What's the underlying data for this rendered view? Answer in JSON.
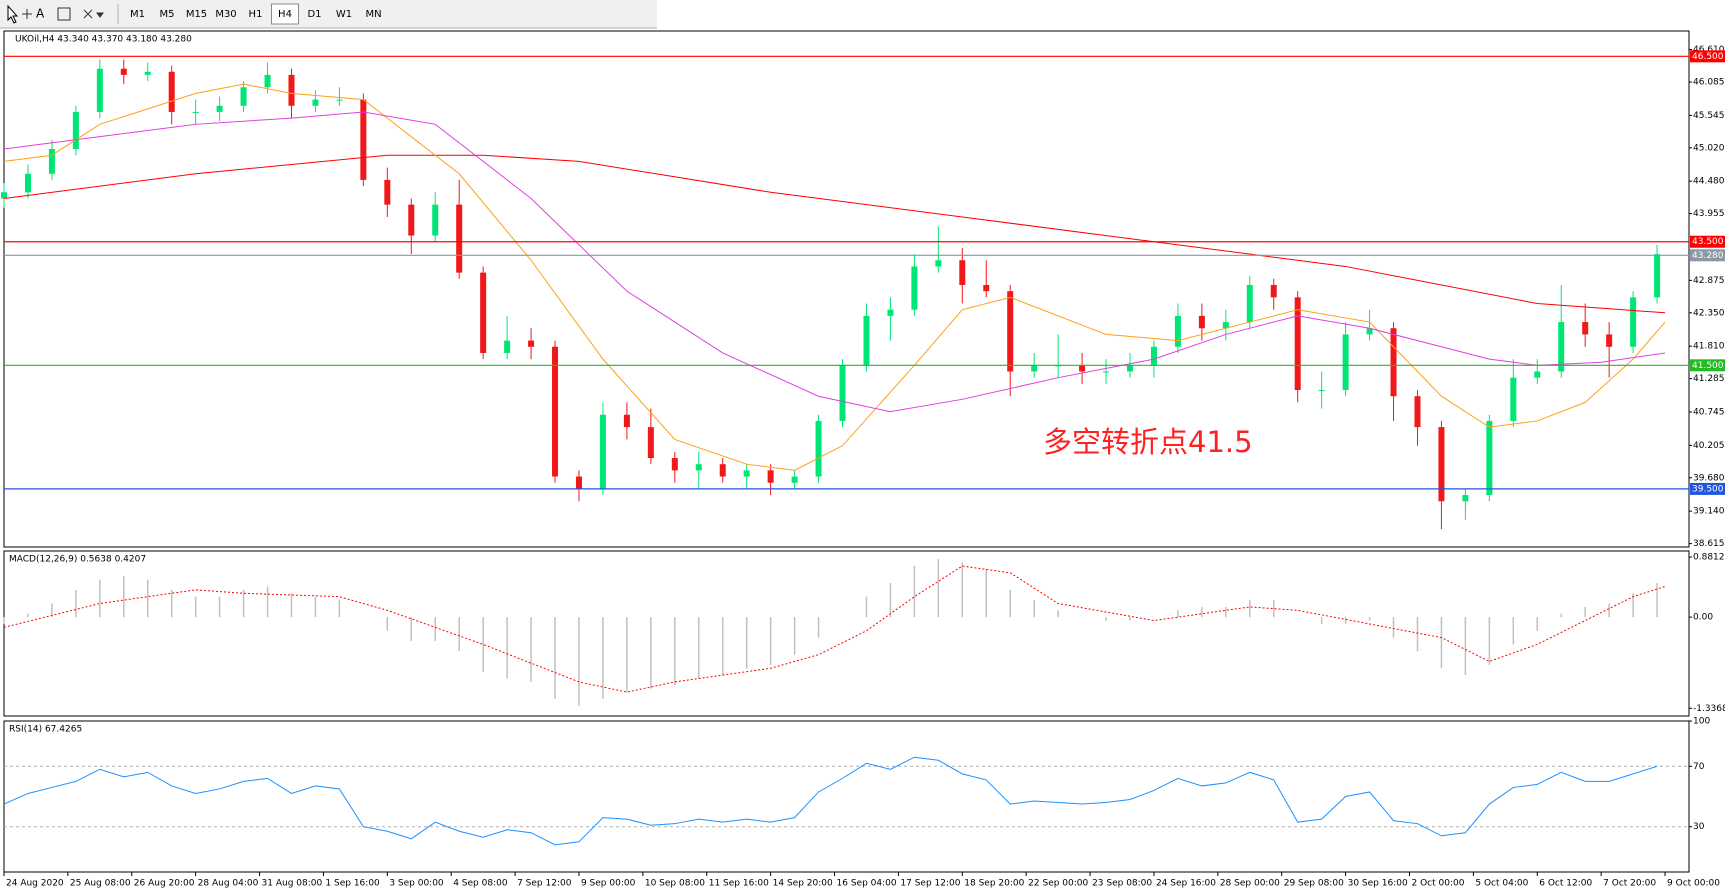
{
  "toolbar": {
    "text_tool": "A",
    "timeframes": [
      "M1",
      "M5",
      "M15",
      "M30",
      "H1",
      "H4",
      "D1",
      "W1",
      "MN"
    ],
    "active_timeframe": "H4"
  },
  "chart_data": [
    {
      "type": "candlestick",
      "title": "UKOil,H4 43.340 43.370 43.180 43.280",
      "x": [
        0,
        3,
        6,
        9,
        12,
        15,
        18,
        21,
        24,
        27,
        30,
        33,
        36,
        39,
        42,
        45,
        48,
        51,
        54,
        57,
        60,
        63,
        66,
        69,
        72,
        75,
        78,
        81,
        84,
        87,
        90,
        93,
        96,
        99,
        102,
        105,
        108,
        111,
        114,
        117,
        120,
        123,
        126,
        129,
        132,
        135,
        138,
        141,
        144,
        147,
        150,
        153,
        156,
        159,
        162,
        165,
        168,
        171,
        174,
        177,
        180,
        183,
        186,
        189,
        192,
        195,
        198,
        201,
        204,
        207
      ],
      "open": [
        44.2,
        44.3,
        44.6,
        45.0,
        45.6,
        46.3,
        46.2,
        46.25,
        45.6,
        45.6,
        45.7,
        46.0,
        46.2,
        45.7,
        45.8,
        45.8,
        44.5,
        44.1,
        43.6,
        44.1,
        43.0,
        41.7,
        41.9,
        41.8,
        39.7,
        39.5,
        40.7,
        40.5,
        40.0,
        39.8,
        39.9,
        39.7,
        39.8,
        39.6,
        39.7,
        40.6,
        41.5,
        42.3,
        42.4,
        43.1,
        43.2,
        42.8,
        42.7,
        41.4,
        41.5,
        41.5,
        41.4,
        41.4,
        41.5,
        41.8,
        42.3,
        42.1,
        42.2,
        42.8,
        42.6,
        41.1,
        41.1,
        42.0,
        42.1,
        41.0,
        40.5,
        39.3,
        39.4,
        40.6,
        41.3,
        41.4,
        42.2,
        42.0,
        41.8,
        42.6
      ],
      "high": [
        44.45,
        44.75,
        45.15,
        45.7,
        46.45,
        46.45,
        46.4,
        46.35,
        45.8,
        45.85,
        46.1,
        46.4,
        46.3,
        45.95,
        46.0,
        45.9,
        44.7,
        44.2,
        44.3,
        44.5,
        43.1,
        42.3,
        42.1,
        41.9,
        39.8,
        40.9,
        40.9,
        40.8,
        40.1,
        40.1,
        40.0,
        39.9,
        39.9,
        39.8,
        40.7,
        41.6,
        42.5,
        42.6,
        43.3,
        43.75,
        43.4,
        43.2,
        42.8,
        41.7,
        42.0,
        41.7,
        41.6,
        41.7,
        41.9,
        42.5,
        42.5,
        42.4,
        42.95,
        42.9,
        42.7,
        41.4,
        42.2,
        42.4,
        42.2,
        41.1,
        40.6,
        39.5,
        40.7,
        41.6,
        41.6,
        42.8,
        42.5,
        42.2,
        42.7,
        43.45
      ],
      "low": [
        44.05,
        44.2,
        44.5,
        44.9,
        45.5,
        46.05,
        46.1,
        45.4,
        45.4,
        45.45,
        45.6,
        45.9,
        45.5,
        45.6,
        45.7,
        44.4,
        43.9,
        43.3,
        43.5,
        42.9,
        41.6,
        41.6,
        41.6,
        39.6,
        39.3,
        39.4,
        40.3,
        39.9,
        39.6,
        39.5,
        39.6,
        39.5,
        39.4,
        39.5,
        39.6,
        40.5,
        41.4,
        41.9,
        42.3,
        43.0,
        42.5,
        42.6,
        41.0,
        41.3,
        41.3,
        41.2,
        41.2,
        41.3,
        41.3,
        41.7,
        41.9,
        41.9,
        42.1,
        42.4,
        40.9,
        40.8,
        41.0,
        41.9,
        40.6,
        40.2,
        38.85,
        39.0,
        39.3,
        40.5,
        41.2,
        41.3,
        41.8,
        41.3,
        41.7,
        42.5
      ],
      "close": [
        44.3,
        44.6,
        45.0,
        45.6,
        46.3,
        46.2,
        46.25,
        45.6,
        45.6,
        45.7,
        46.0,
        46.2,
        45.7,
        45.8,
        45.8,
        44.5,
        44.1,
        43.6,
        44.1,
        43.0,
        41.7,
        41.9,
        41.8,
        39.7,
        39.5,
        40.7,
        40.5,
        40.0,
        39.8,
        39.9,
        39.7,
        39.8,
        39.6,
        39.7,
        40.6,
        41.5,
        42.3,
        42.4,
        43.1,
        43.2,
        42.8,
        42.7,
        41.4,
        41.5,
        41.5,
        41.4,
        41.4,
        41.5,
        41.8,
        42.3,
        42.1,
        42.2,
        42.8,
        42.6,
        41.1,
        41.1,
        42.0,
        42.1,
        41.0,
        40.5,
        39.3,
        39.4,
        40.6,
        41.3,
        41.4,
        42.2,
        42.0,
        41.8,
        42.6,
        43.3
      ],
      "up_color": "#00e676",
      "down_color": "#f01818",
      "series": [
        {
          "type": "line",
          "color": "#ff0000",
          "x": [
            0,
            24,
            48,
            60,
            72,
            96,
            120,
            144,
            168,
            192,
            208
          ],
          "values": [
            44.2,
            44.6,
            44.9,
            44.9,
            44.8,
            44.3,
            43.9,
            43.5,
            43.1,
            42.5,
            42.35
          ]
        },
        {
          "type": "line",
          "color": "#ff9f1a",
          "x": [
            0,
            6,
            12,
            24,
            30,
            36,
            45,
            51,
            57,
            66,
            75,
            84,
            93,
            99,
            105,
            114,
            120,
            126,
            138,
            147,
            156,
            162,
            171,
            180,
            186,
            192,
            198,
            204,
            208
          ],
          "values": [
            44.8,
            44.9,
            45.4,
            45.9,
            46.05,
            45.9,
            45.8,
            45.2,
            44.6,
            43.2,
            41.6,
            40.3,
            39.9,
            39.8,
            40.2,
            41.5,
            42.4,
            42.6,
            42.0,
            41.9,
            42.2,
            42.4,
            42.2,
            41.0,
            40.5,
            40.6,
            40.9,
            41.6,
            42.2
          ]
        },
        {
          "type": "line",
          "color": "#e040e0",
          "x": [
            0,
            12,
            24,
            36,
            45,
            54,
            66,
            78,
            90,
            102,
            111,
            120,
            132,
            144,
            153,
            162,
            171,
            180,
            186,
            192,
            200,
            208
          ],
          "values": [
            45.0,
            45.2,
            45.4,
            45.5,
            45.6,
            45.4,
            44.2,
            42.7,
            41.7,
            41.0,
            40.75,
            40.95,
            41.3,
            41.6,
            42.0,
            42.3,
            42.1,
            41.8,
            41.6,
            41.5,
            41.55,
            41.7
          ]
        }
      ],
      "levels": [
        {
          "value": 46.5,
          "label": "46.500",
          "color": "#ff0000"
        },
        {
          "value": 43.5,
          "label": "43.500",
          "color": "#ff0000"
        },
        {
          "value": 43.28,
          "label": "43.280",
          "color": "#8a98a6"
        },
        {
          "value": 41.5,
          "label": "41.500",
          "color": "#22bb22"
        },
        {
          "value": 39.5,
          "label": "39.500",
          "color": "#2255dd"
        }
      ],
      "annotation": "多空转折点41.5",
      "xlim": [
        0,
        211
      ],
      "ylim": [
        38.56,
        46.91
      ],
      "yticks": [
        {
          "value": 46.61,
          "label": "46.610"
        },
        46.085,
        45.545,
        {
          "value": 45.02,
          "label": "45.020"
        },
        {
          "value": 44.48,
          "label": "44.480"
        },
        43.955,
        42.875,
        {
          "value": 42.35,
          "label": "42.350"
        },
        {
          "value": 41.81,
          "label": "41.810"
        },
        41.285,
        40.745,
        40.205,
        {
          "value": 39.68,
          "label": "39.680"
        },
        {
          "value": 39.14,
          "label": "39.140"
        },
        38.615
      ]
    },
    {
      "type": "bar",
      "title": "MACD(12,26,9) 0.5638 0.4207",
      "xlim": [
        0,
        211
      ],
      "ylim": [
        -1.45,
        0.97
      ],
      "yticks": [
        0.8812,
        {
          "value": 0,
          "label": "0.00"
        },
        -1.3368
      ],
      "series": [
        {
          "type": "bar",
          "color": "#c0c0c0",
          "x": [
            0,
            3,
            6,
            9,
            12,
            15,
            18,
            21,
            24,
            27,
            30,
            33,
            36,
            39,
            42,
            45,
            48,
            51,
            54,
            57,
            60,
            63,
            66,
            69,
            72,
            75,
            78,
            81,
            84,
            87,
            90,
            93,
            96,
            99,
            102,
            105,
            108,
            111,
            114,
            117,
            120,
            123,
            126,
            129,
            132,
            135,
            138,
            141,
            144,
            147,
            150,
            153,
            156,
            159,
            162,
            165,
            168,
            171,
            174,
            177,
            180,
            183,
            186,
            189,
            192,
            195,
            198,
            201,
            204,
            207
          ],
          "values": [
            -0.1,
            0.05,
            0.2,
            0.4,
            0.55,
            0.6,
            0.55,
            0.4,
            0.3,
            0.3,
            0.4,
            0.45,
            0.35,
            0.3,
            0.25,
            0.0,
            -0.2,
            -0.35,
            -0.35,
            -0.5,
            -0.8,
            -0.9,
            -0.95,
            -1.2,
            -1.3,
            -1.2,
            -1.1,
            -1.05,
            -1.0,
            -0.9,
            -0.85,
            -0.75,
            -0.7,
            -0.55,
            -0.3,
            0.0,
            0.3,
            0.5,
            0.75,
            0.85,
            0.8,
            0.7,
            0.4,
            0.25,
            0.1,
            0.0,
            -0.05,
            -0.05,
            0.0,
            0.1,
            0.15,
            0.15,
            0.25,
            0.25,
            0.0,
            -0.1,
            -0.1,
            -0.05,
            -0.3,
            -0.5,
            -0.75,
            -0.85,
            -0.7,
            -0.4,
            -0.2,
            0.05,
            0.15,
            0.2,
            0.35,
            0.5
          ]
        },
        {
          "type": "line",
          "style": "dotted",
          "color": "#ff0000",
          "x": [
            0,
            12,
            24,
            30,
            42,
            48,
            60,
            72,
            78,
            84,
            96,
            102,
            108,
            114,
            120,
            126,
            132,
            144,
            156,
            162,
            171,
            180,
            186,
            192,
            198,
            204,
            208
          ],
          "values": [
            -0.15,
            0.2,
            0.4,
            0.35,
            0.3,
            0.1,
            -0.4,
            -0.95,
            -1.1,
            -0.95,
            -0.75,
            -0.55,
            -0.2,
            0.3,
            0.75,
            0.65,
            0.2,
            -0.05,
            0.15,
            0.1,
            -0.1,
            -0.3,
            -0.65,
            -0.4,
            -0.05,
            0.3,
            0.45
          ]
        }
      ]
    },
    {
      "type": "line",
      "title": "RSI(14) 67.4265",
      "xlim": [
        0,
        211
      ],
      "ylim": [
        0,
        100
      ],
      "yticks": [
        100,
        70,
        30
      ],
      "grid": true,
      "series": [
        {
          "type": "line",
          "color": "#1e90ff",
          "x": [
            0,
            3,
            6,
            9,
            12,
            15,
            18,
            21,
            24,
            27,
            30,
            33,
            36,
            39,
            42,
            45,
            48,
            51,
            54,
            57,
            60,
            63,
            66,
            69,
            72,
            75,
            78,
            81,
            84,
            87,
            90,
            93,
            96,
            99,
            102,
            105,
            108,
            111,
            114,
            117,
            120,
            123,
            126,
            129,
            132,
            135,
            138,
            141,
            144,
            147,
            150,
            153,
            156,
            159,
            162,
            165,
            168,
            171,
            174,
            177,
            180,
            183,
            186,
            189,
            192,
            195,
            198,
            201,
            204,
            207
          ],
          "values": [
            45,
            52,
            56,
            60,
            68,
            63,
            66,
            57,
            52,
            55,
            60,
            62,
            52,
            57,
            55,
            30,
            27,
            22,
            33,
            27,
            23,
            28,
            26,
            18,
            20,
            36,
            35,
            31,
            32,
            35,
            33,
            35,
            33,
            36,
            53,
            62,
            72,
            68,
            76,
            74,
            65,
            61,
            45,
            47,
            46,
            45,
            46,
            48,
            54,
            62,
            57,
            59,
            66,
            61,
            33,
            35,
            50,
            53,
            34,
            32,
            24,
            26,
            45,
            56,
            58,
            66,
            60,
            60,
            65,
            70
          ]
        }
      ],
      "xticks": [
        {
          "value": 0,
          "label": "24 Aug 2020"
        },
        {
          "value": 8,
          "label": "25 Aug 08:00"
        },
        {
          "value": 16,
          "label": "26 Aug 20:00"
        },
        {
          "value": 24,
          "label": "28 Aug 04:00"
        },
        {
          "value": 32,
          "label": "31 Aug 08:00"
        },
        {
          "value": 40,
          "label": "1 Sep 16:00"
        },
        {
          "value": 48,
          "label": "3 Sep 00:00"
        },
        {
          "value": 56,
          "label": "4 Sep 08:00"
        },
        {
          "value": 64,
          "label": "7 Sep 12:00"
        },
        {
          "value": 72,
          "label": "9 Sep 00:00"
        },
        {
          "value": 80,
          "label": "10 Sep 08:00"
        },
        {
          "value": 88,
          "label": "11 Sep 16:00"
        },
        {
          "value": 96,
          "label": "14 Sep 20:00"
        },
        {
          "value": 104,
          "label": "16 Sep 04:00"
        },
        {
          "value": 112,
          "label": "17 Sep 12:00"
        },
        {
          "value": 120,
          "label": "18 Sep 20:00"
        },
        {
          "value": 128,
          "label": "22 Sep 00:00"
        },
        {
          "value": 136,
          "label": "23 Sep 08:00"
        },
        {
          "value": 144,
          "label": "24 Sep 16:00"
        },
        {
          "value": 152,
          "label": "28 Sep 00:00"
        },
        {
          "value": 160,
          "label": "29 Sep 08:00"
        },
        {
          "value": 168,
          "label": "30 Sep 16:00"
        },
        {
          "value": 176,
          "label": "2 Oct 00:00"
        },
        {
          "value": 184,
          "label": "5 Oct 04:00"
        },
        {
          "value": 192,
          "label": "6 Oct 12:00"
        },
        {
          "value": 200,
          "label": "7 Oct 20:00"
        },
        {
          "value": 208,
          "label": "9 Oct 00:00"
        }
      ]
    }
  ]
}
